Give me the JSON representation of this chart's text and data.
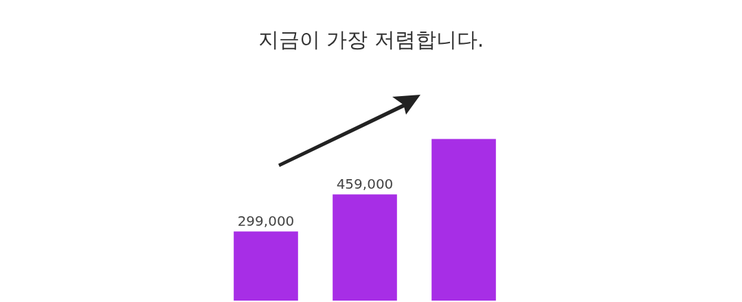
{
  "chart_data": {
    "type": "bar",
    "title": "지금이 가장 저렴합니다.",
    "categories": [
      null,
      null,
      null
    ],
    "values": [
      299000,
      459000,
      699000
    ],
    "value_labels": [
      "299,000",
      "459,000",
      null
    ],
    "color": "#a72ee6",
    "legend": false
  }
}
